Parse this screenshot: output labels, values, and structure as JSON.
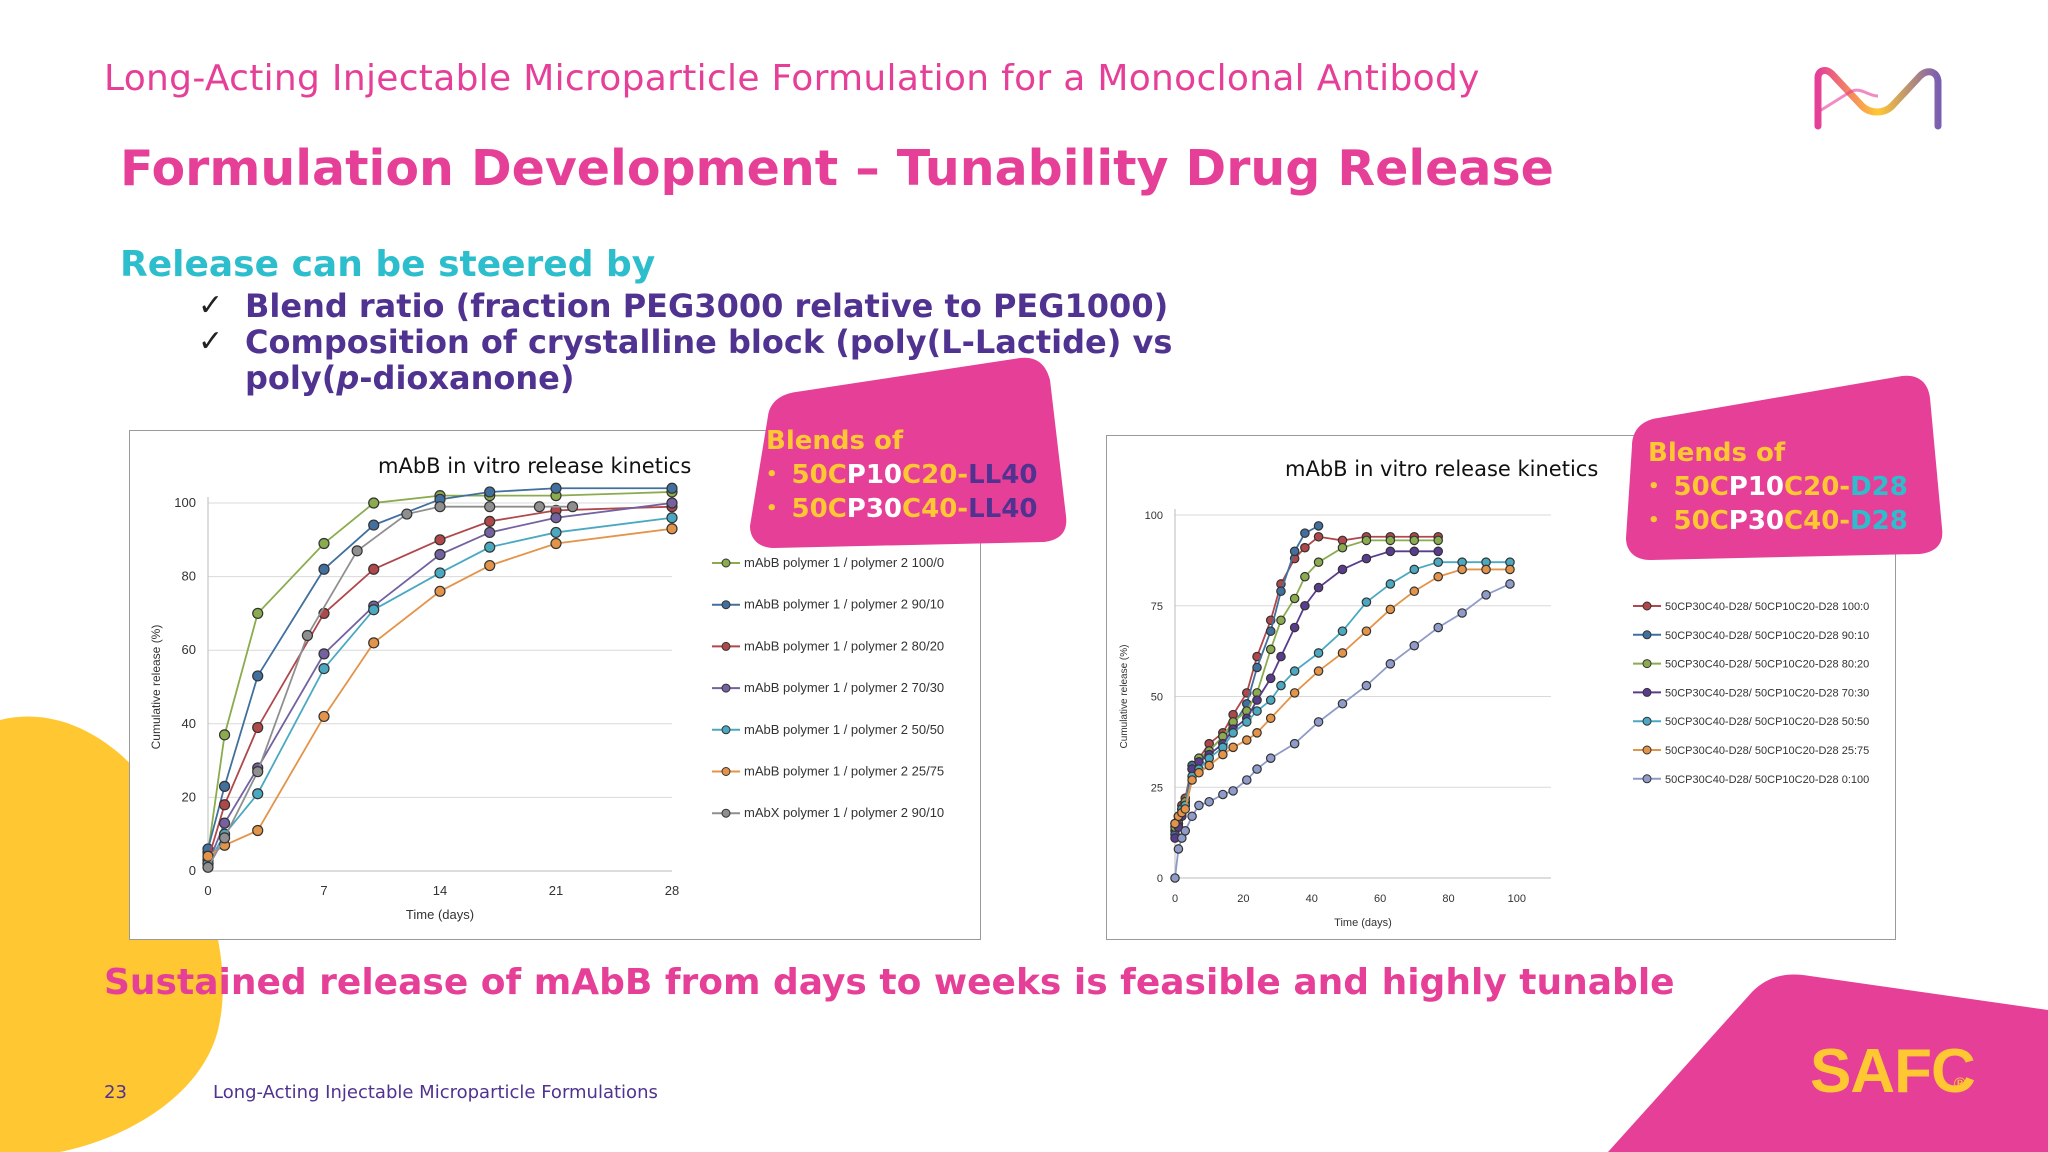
{
  "header": {
    "title": "Long-Acting Injectable Microparticle Formulation for a Monoclonal Antibody"
  },
  "slide": {
    "title": "Formulation Development – Tunability Drug Release",
    "steer_heading": "Release can be steered by",
    "bullets": [
      {
        "check": "✓",
        "text": "Blend ratio (fraction PEG3000 relative to PEG1000)"
      },
      {
        "check": "✓",
        "line1": "Composition of crystalline block (poly(L-Lactide) vs",
        "line2_a": "poly(",
        "line2_i": "p",
        "line2_b": "-dioxanone)"
      }
    ],
    "conclusion": "Sustained release of mAbB from days to weeks is feasible and highly tunable"
  },
  "footer": {
    "page_number": "23",
    "text": "Long-Acting Injectable Microparticle Formulations"
  },
  "brand": {
    "logo_text": "SAFC",
    "registered": "®"
  },
  "colors": {
    "pink": "#e53f98",
    "cyan": "#2dbecd",
    "purple": "#503291",
    "yellow": "#ffc832"
  },
  "badges": [
    {
      "heading": "Blends of",
      "bullet": "•",
      "line1": [
        "50C",
        "P10",
        "C20-",
        "LL40"
      ],
      "line2": [
        "50C",
        "P30",
        "C40-",
        "LL40"
      ]
    },
    {
      "heading": "Blends of",
      "bullet": "•",
      "line1": [
        "50C",
        "P10",
        "C20-",
        "D28"
      ],
      "line2": [
        "50C",
        "P30",
        "C40-",
        "D28"
      ]
    }
  ],
  "chart_data": [
    {
      "type": "line",
      "title": "mAbB in vitro release kinetics",
      "xlabel": "Time (days)",
      "ylabel": "Cumulative release (%)",
      "xlim": [
        0,
        28
      ],
      "ylim": [
        0,
        100
      ],
      "xticks": [
        0,
        7,
        14,
        21,
        28
      ],
      "yticks": [
        0,
        20,
        40,
        60,
        80,
        100
      ],
      "grid": true,
      "legend_position": "right",
      "series": [
        {
          "name": "mAbB polymer 1 / polymer 2 100/0",
          "color": "#8aab4e",
          "x": [
            0,
            1,
            3,
            7,
            10,
            14,
            17,
            21,
            28
          ],
          "y": [
            5,
            37,
            70,
            89,
            100,
            102,
            102,
            102,
            103
          ]
        },
        {
          "name": "mAbB polymer 1 / polymer 2 90/10",
          "color": "#41709e",
          "x": [
            0,
            1,
            3,
            7,
            10,
            14,
            17,
            21,
            28
          ],
          "y": [
            6,
            23,
            53,
            82,
            94,
            101,
            103,
            104,
            104
          ]
        },
        {
          "name": "mAbB polymer 1 / polymer 2 80/20",
          "color": "#b0474b",
          "x": [
            0,
            1,
            3,
            7,
            10,
            14,
            17,
            21,
            28
          ],
          "y": [
            3,
            18,
            39,
            70,
            82,
            90,
            95,
            98,
            99
          ]
        },
        {
          "name": "mAbB polymer 1 / polymer 2 70/30",
          "color": "#7361a0",
          "x": [
            0,
            1,
            3,
            7,
            10,
            14,
            17,
            21,
            28
          ],
          "y": [
            2,
            13,
            28,
            59,
            72,
            86,
            92,
            96,
            100
          ]
        },
        {
          "name": "mAbB polymer 1 / polymer 2 50/50",
          "color": "#4aa9c0",
          "x": [
            0,
            1,
            3,
            7,
            10,
            14,
            17,
            21,
            28
          ],
          "y": [
            2,
            10,
            21,
            55,
            71,
            81,
            88,
            92,
            96
          ]
        },
        {
          "name": "mAbB polymer 1 / polymer 2 25/75",
          "color": "#e39449",
          "x": [
            0,
            1,
            3,
            7,
            10,
            14,
            17,
            21,
            28
          ],
          "y": [
            4,
            7,
            11,
            42,
            62,
            76,
            83,
            89,
            93
          ]
        },
        {
          "name": "mAbX polymer 1 / polymer 2 90/10",
          "color": "#8f8f8f",
          "x": [
            0,
            1,
            3,
            6,
            9,
            12,
            14,
            17,
            20,
            22
          ],
          "y": [
            1,
            9,
            27,
            64,
            87,
            97,
            99,
            99,
            99,
            99
          ]
        }
      ]
    },
    {
      "type": "line",
      "title": "mAbB in vitro release kinetics",
      "xlabel": "Time (days)",
      "ylabel": "Cumulative release (%)",
      "xlim": [
        0,
        110
      ],
      "ylim": [
        0,
        100
      ],
      "xticks": [
        0,
        20,
        40,
        60,
        80,
        100
      ],
      "yticks": [
        0,
        25,
        50,
        75,
        100
      ],
      "grid": true,
      "legend_position": "right",
      "series": [
        {
          "name": "50CP30C40-D28/ 50CP10C20-D28 100:0",
          "color": "#b0474b",
          "x": [
            0,
            1,
            2,
            3,
            5,
            7,
            10,
            14,
            17,
            21,
            24,
            28,
            31,
            35,
            38,
            42,
            49,
            56,
            63,
            70,
            77
          ],
          "y": [
            13,
            17,
            20,
            22,
            31,
            33,
            37,
            40,
            45,
            51,
            61,
            71,
            81,
            88,
            91,
            94,
            93,
            94,
            94,
            94,
            94
          ]
        },
        {
          "name": "50CP30C40-D28/ 50CP10C20-D28 90:10",
          "color": "#41709e",
          "x": [
            0,
            1,
            2,
            3,
            5,
            7,
            10,
            14,
            17,
            21,
            24,
            28,
            31,
            35,
            38,
            42
          ],
          "y": [
            12,
            15,
            18,
            21,
            31,
            32,
            35,
            39,
            42,
            48,
            58,
            68,
            79,
            90,
            95,
            97
          ]
        },
        {
          "name": "50CP30C40-D28/ 50CP10C20-D28 80:20",
          "color": "#8aab4e",
          "x": [
            0,
            1,
            2,
            3,
            5,
            7,
            10,
            14,
            17,
            21,
            24,
            28,
            31,
            35,
            38,
            42,
            49,
            56,
            63,
            70,
            77
          ],
          "y": [
            14,
            16,
            19,
            21,
            30,
            33,
            35,
            39,
            43,
            46,
            51,
            63,
            71,
            77,
            83,
            87,
            91,
            93,
            93,
            93,
            93
          ]
        },
        {
          "name": "50CP30C40-D28/ 50CP10C20-D28 70:30",
          "color": "#5a3c8f",
          "x": [
            0,
            1,
            2,
            3,
            5,
            7,
            10,
            14,
            17,
            21,
            24,
            28,
            31,
            35,
            38,
            42,
            49,
            56,
            63,
            70,
            77
          ],
          "y": [
            11,
            14,
            17,
            20,
            30,
            32,
            34,
            37,
            41,
            44,
            49,
            55,
            61,
            69,
            75,
            80,
            85,
            88,
            90,
            90,
            90
          ]
        },
        {
          "name": "50CP30C40-D28/ 50CP10C20-D28 50:50",
          "color": "#4aa9c0",
          "x": [
            0,
            1,
            2,
            3,
            5,
            7,
            10,
            14,
            17,
            21,
            24,
            28,
            31,
            35,
            42,
            49,
            56,
            63,
            70,
            77,
            84,
            91,
            98
          ],
          "y": [
            15,
            17,
            19,
            20,
            28,
            30,
            33,
            36,
            40,
            43,
            46,
            49,
            53,
            57,
            62,
            68,
            76,
            81,
            85,
            87,
            87,
            87,
            87
          ]
        },
        {
          "name": "50CP30C40-D28/ 50CP10C20-D28 25:75",
          "color": "#e39449",
          "x": [
            0,
            1,
            2,
            3,
            5,
            7,
            10,
            14,
            17,
            21,
            24,
            28,
            35,
            42,
            49,
            56,
            63,
            70,
            77,
            84,
            91,
            98
          ],
          "y": [
            15,
            17,
            18,
            19,
            27,
            29,
            31,
            34,
            36,
            38,
            40,
            44,
            51,
            57,
            62,
            68,
            74,
            79,
            83,
            85,
            85,
            85
          ]
        },
        {
          "name": "50CP30C40-D28/ 50CP10C20-D28 0:100",
          "color": "#8f9bc9",
          "x": [
            0,
            1,
            2,
            3,
            5,
            7,
            10,
            14,
            17,
            21,
            24,
            28,
            35,
            42,
            49,
            56,
            63,
            70,
            77,
            84,
            91,
            98
          ],
          "y": [
            0,
            8,
            11,
            13,
            17,
            20,
            21,
            23,
            24,
            27,
            30,
            33,
            37,
            43,
            48,
            53,
            59,
            64,
            69,
            73,
            78,
            81
          ]
        }
      ]
    }
  ]
}
